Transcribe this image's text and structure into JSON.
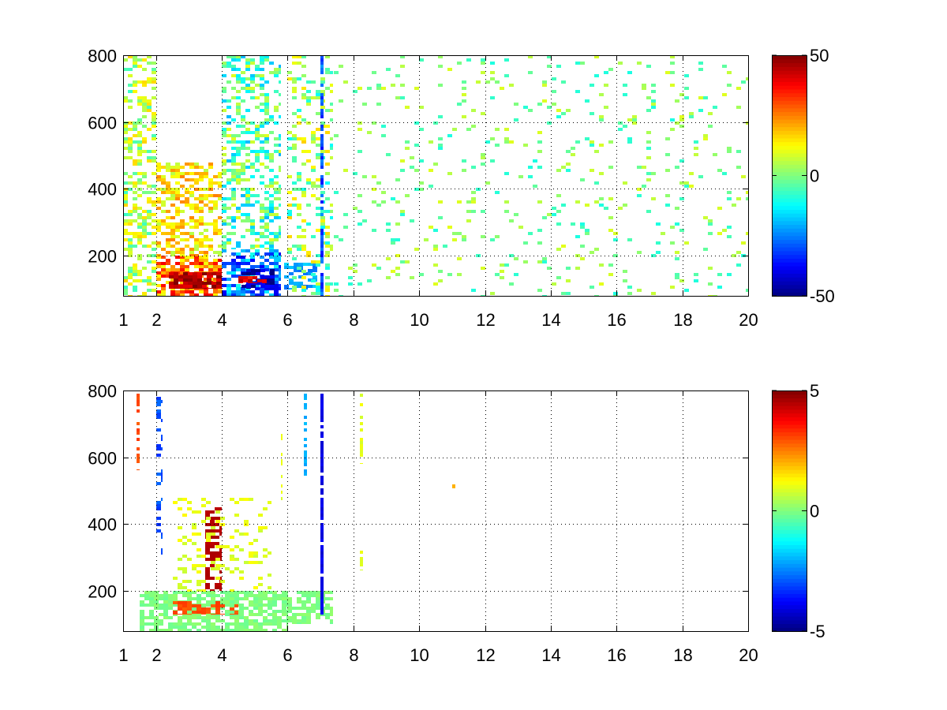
{
  "chart_data": [
    {
      "type": "heatmap",
      "title": "",
      "xlabel": "",
      "ylabel": "",
      "x_range": [
        1,
        20
      ],
      "y_range": [
        80,
        800
      ],
      "x_ticks": [
        1,
        2,
        4,
        6,
        8,
        10,
        12,
        14,
        16,
        18,
        20
      ],
      "y_ticks": [
        200,
        400,
        600,
        800
      ],
      "x_tick_labels": [
        "1",
        "2",
        "4",
        "6",
        "8",
        "10",
        "12",
        "14",
        "16",
        "18",
        "20"
      ],
      "y_tick_labels": [
        "200",
        "400",
        "600",
        "800"
      ],
      "grid": true,
      "colormap": "jet",
      "colorbar": {
        "min": -50,
        "max": 50,
        "ticks": [
          -50,
          0,
          50
        ],
        "tick_labels": [
          "-50",
          "0",
          "50"
        ],
        "placement": "right"
      },
      "features": [
        {
          "x": [
            1.0,
            2.0
          ],
          "y": [
            80,
            800
          ],
          "value": 5,
          "density": 0.45,
          "spread": 12
        },
        {
          "x": [
            2.0,
            4.0
          ],
          "y": [
            80,
            200
          ],
          "value": 25,
          "density": 0.7,
          "spread": 15
        },
        {
          "x": [
            2.4,
            4.0
          ],
          "y": [
            100,
            150
          ],
          "value": 45,
          "density": 0.85,
          "spread": 6
        },
        {
          "x": [
            2.0,
            4.0
          ],
          "y": [
            200,
            480
          ],
          "value": 15,
          "density": 0.5,
          "spread": 10
        },
        {
          "x": [
            4.0,
            5.8
          ],
          "y": [
            80,
            220
          ],
          "value": -25,
          "density": 0.7,
          "spread": 15
        },
        {
          "x": [
            4.6,
            5.6
          ],
          "y": [
            100,
            160
          ],
          "value": -45,
          "density": 0.8,
          "spread": 8
        },
        {
          "x": [
            4.5,
            5.6
          ],
          "y": [
            120,
            140
          ],
          "value": 40,
          "density": 0.6,
          "spread": 6
        },
        {
          "x": [
            4.0,
            5.8
          ],
          "y": [
            220,
            800
          ],
          "value": -5,
          "density": 0.45,
          "spread": 15
        },
        {
          "x": [
            5.9,
            6.9
          ],
          "y": [
            100,
            180
          ],
          "value": -22,
          "density": 0.55,
          "spread": 6
        },
        {
          "x": [
            6.0,
            7.4
          ],
          "y": [
            80,
            800
          ],
          "value": 2,
          "density": 0.25,
          "spread": 15
        },
        {
          "x": [
            7.0,
            7.1
          ],
          "y": [
            80,
            800
          ],
          "value": -30,
          "density": 0.8,
          "spread": 8
        },
        {
          "x": [
            7.4,
            20.0
          ],
          "y": [
            80,
            800
          ],
          "value": 0,
          "density": 0.08,
          "spread": 10
        }
      ]
    },
    {
      "type": "heatmap",
      "title": "",
      "xlabel": "",
      "ylabel": "",
      "x_range": [
        1,
        20
      ],
      "y_range": [
        80,
        800
      ],
      "x_ticks": [
        1,
        2,
        4,
        6,
        8,
        10,
        12,
        14,
        16,
        18,
        20
      ],
      "y_ticks": [
        200,
        400,
        600,
        800
      ],
      "x_tick_labels": [
        "1",
        "2",
        "4",
        "6",
        "8",
        "10",
        "12",
        "14",
        "16",
        "18",
        "20"
      ],
      "y_tick_labels": [
        "200",
        "400",
        "600",
        "800"
      ],
      "grid": true,
      "colormap": "jet",
      "colorbar": {
        "min": -5,
        "max": 5,
        "ticks": [
          -5,
          0,
          5
        ],
        "tick_labels": [
          "-5",
          "0",
          "5"
        ],
        "placement": "right"
      },
      "features": [
        {
          "x": [
            1.4,
            1.5
          ],
          "y": [
            560,
            790
          ],
          "value": 3,
          "density": 0.6,
          "spread": 2
        },
        {
          "x": [
            2.0,
            2.2
          ],
          "y": [
            300,
            790
          ],
          "value": -3,
          "density": 0.25,
          "spread": 3
        },
        {
          "x": [
            1.5,
            6.0
          ],
          "y": [
            80,
            200
          ],
          "value": 0,
          "density": 0.75,
          "spread": 2
        },
        {
          "x": [
            2.5,
            4.5
          ],
          "y": [
            130,
            170
          ],
          "value": 3,
          "density": 0.6,
          "spread": 2
        },
        {
          "x": [
            3.5,
            4.0
          ],
          "y": [
            200,
            450
          ],
          "value": 4.5,
          "density": 0.55,
          "spread": 1
        },
        {
          "x": [
            2.5,
            5.5
          ],
          "y": [
            200,
            480
          ],
          "value": 1,
          "density": 0.2,
          "spread": 3
        },
        {
          "x": [
            5.8,
            5.85
          ],
          "y": [
            460,
            680
          ],
          "value": 1,
          "density": 0.5,
          "spread": 2
        },
        {
          "x": [
            6.0,
            7.4
          ],
          "y": [
            100,
            200
          ],
          "value": 0,
          "density": 0.55,
          "spread": 2
        },
        {
          "x": [
            6.5,
            6.6
          ],
          "y": [
            540,
            790
          ],
          "value": -2,
          "density": 0.6,
          "spread": 2
        },
        {
          "x": [
            7.0,
            7.1
          ],
          "y": [
            130,
            790
          ],
          "value": -4,
          "density": 0.85,
          "spread": 2
        },
        {
          "x": [
            8.2,
            8.3
          ],
          "y": [
            580,
            790
          ],
          "value": 1,
          "density": 0.6,
          "spread": 2
        },
        {
          "x": [
            8.2,
            8.3
          ],
          "y": [
            260,
            320
          ],
          "value": 1,
          "density": 0.6,
          "spread": 2
        },
        {
          "x": [
            11.0,
            11.1
          ],
          "y": [
            510,
            520
          ],
          "value": 2,
          "density": 1.0,
          "spread": 1
        }
      ]
    }
  ]
}
